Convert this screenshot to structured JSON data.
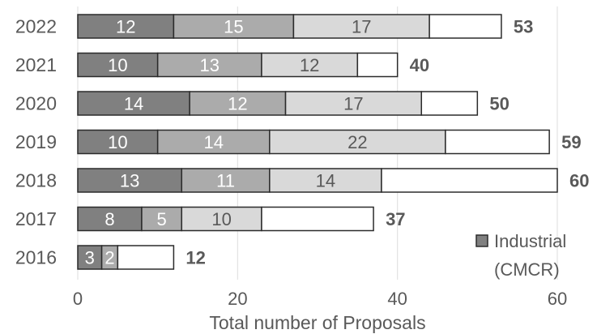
{
  "chart_data": {
    "type": "bar",
    "orientation": "horizontal",
    "stacked": true,
    "categories": [
      "2022",
      "2021",
      "2020",
      "2019",
      "2018",
      "2017",
      "2016"
    ],
    "series": [
      {
        "name": "Industrial (CMCR)",
        "values": [
          12,
          10,
          14,
          10,
          13,
          8,
          3
        ]
      },
      {
        "values": [
          15,
          13,
          12,
          14,
          11,
          5,
          2
        ]
      },
      {
        "values": [
          17,
          12,
          17,
          22,
          14,
          10,
          0
        ]
      },
      {
        "values": [
          9,
          5,
          7,
          13,
          22,
          14,
          7
        ]
      }
    ],
    "segment_labels": [
      [
        "12",
        "15",
        "17"
      ],
      [
        "10",
        "13",
        "12"
      ],
      [
        "14",
        "12",
        "17"
      ],
      [
        "10",
        "14",
        "22"
      ],
      [
        "13",
        "11",
        "14"
      ],
      [
        "8",
        "5",
        "10"
      ],
      [
        "3",
        "2"
      ]
    ],
    "totals": [
      53,
      40,
      50,
      59,
      60,
      37,
      12
    ],
    "xlabel": "Total number of Proposals",
    "ylabel": "",
    "xlim": [
      0,
      60
    ],
    "xticks": [
      0,
      20,
      40,
      60
    ],
    "grid": "vertical",
    "legend": {
      "position": "bottom-right",
      "entries": [
        "Industrial",
        "(CMCR)"
      ]
    },
    "colors": {
      "series": [
        "#808080",
        "#ababab",
        "#d9d9d9",
        "#ffffff"
      ],
      "stroke": "#2b2b2b",
      "grid": "#e3e3e3",
      "text": "#595959"
    }
  }
}
